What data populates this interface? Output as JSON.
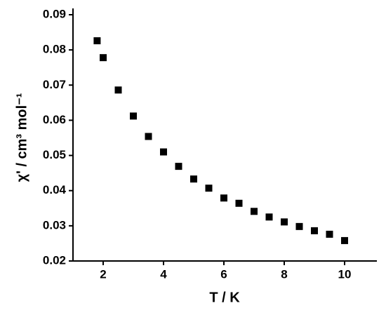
{
  "chart_data": {
    "type": "scatter",
    "x_label": "T / K",
    "y_label": "χ' / cm³ mol⁻¹",
    "x": [
      1.8,
      2.0,
      2.5,
      3.0,
      3.5,
      4.0,
      4.5,
      5.0,
      5.5,
      6.0,
      6.5,
      7.0,
      7.5,
      8.0,
      8.5,
      9.0,
      9.5,
      10.0
    ],
    "values": [
      0.0826,
      0.0778,
      0.0686,
      0.0612,
      0.0554,
      0.051,
      0.0469,
      0.0433,
      0.0407,
      0.0379,
      0.0364,
      0.0341,
      0.0325,
      0.0311,
      0.0298,
      0.0286,
      0.0276,
      0.0258
    ],
    "color": "#000000",
    "xlim": [
      1,
      11
    ],
    "xticks": [
      2,
      4,
      6,
      8,
      10
    ],
    "ylim": [
      0.02,
      0.09
    ],
    "yticks": [
      0.02,
      0.03,
      0.04,
      0.05,
      0.06,
      0.07,
      0.08,
      0.09
    ]
  }
}
